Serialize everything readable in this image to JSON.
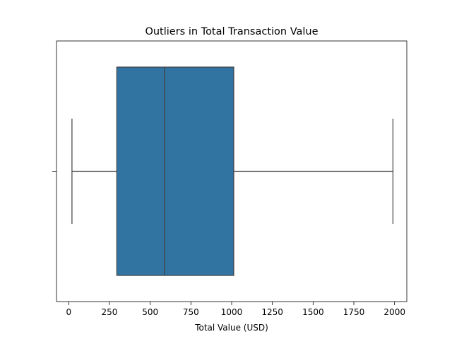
{
  "chart_data": {
    "type": "box",
    "title": "Outliers in Total Transaction Value",
    "xlabel": "Total Value (USD)",
    "ylabel": "",
    "orientation": "horizontal",
    "xlim": [
      -75,
      2075
    ],
    "xticks": [
      0,
      250,
      500,
      750,
      1000,
      1250,
      1500,
      1750,
      2000
    ],
    "grid": false,
    "box": {
      "whisker_low": 20,
      "q1": 295,
      "median": 587,
      "q3": 1013,
      "whisker_high": 1990,
      "outliers": []
    },
    "colors": {
      "box_fill": "#3274a1",
      "line": "#3f3f3f"
    }
  }
}
